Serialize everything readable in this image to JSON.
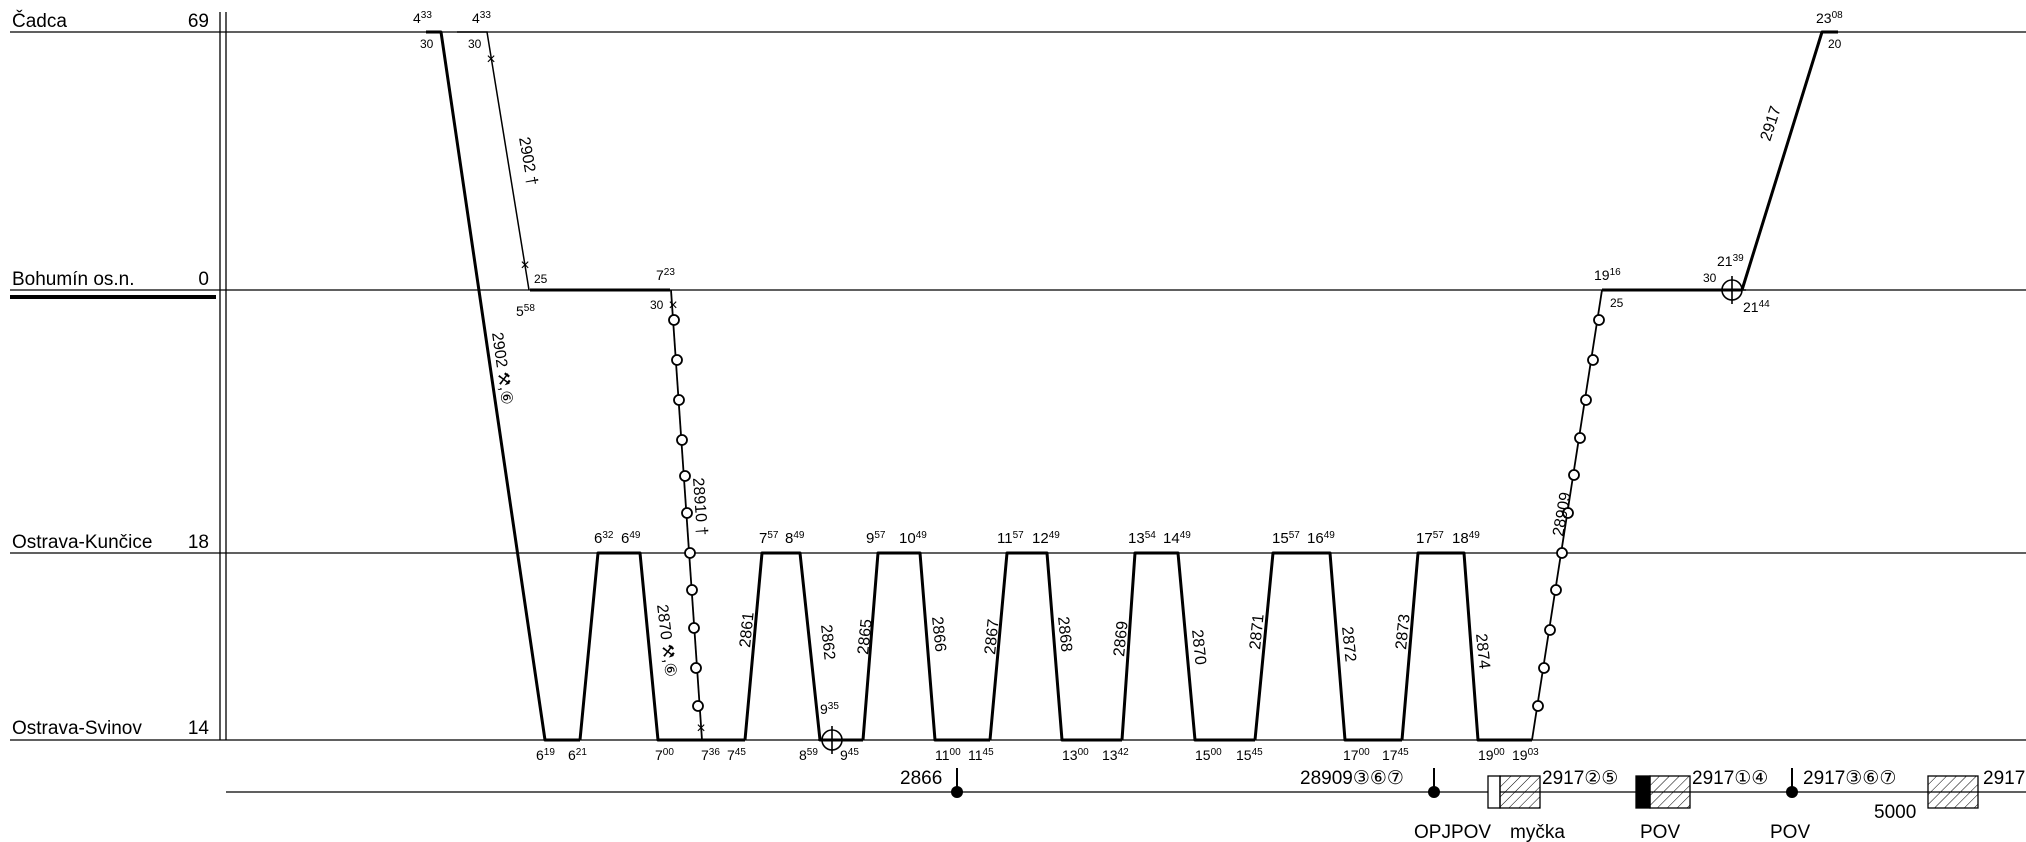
{
  "stations": [
    {
      "id": "cadca",
      "name": "Čadca",
      "km": "69"
    },
    {
      "id": "bohumin",
      "name": "Bohumín os.n.",
      "km": "0"
    },
    {
      "id": "kuncice",
      "name": "Ostrava-Kunčice",
      "km": "18"
    },
    {
      "id": "svinov",
      "name": "Ostrava-Svinov",
      "km": "14"
    }
  ],
  "time_labels": {
    "cadca": [
      {
        "h": "4",
        "m": "33",
        "dwell": "30"
      },
      {
        "h": "4",
        "m": "33",
        "dwell": "30"
      },
      {
        "h": "23",
        "m": "08",
        "dwell": "20"
      }
    ],
    "bohumin": [
      {
        "h": "5",
        "m": "58",
        "dwell": "25"
      },
      {
        "h": "7",
        "m": "23",
        "dwell": "30"
      },
      {
        "h": "19",
        "m": "16",
        "dwell": "25"
      },
      {
        "h": "21",
        "m": "39",
        "dwell": "30"
      },
      {
        "h": "21",
        "m": "44"
      }
    ],
    "kuncice": [
      {
        "h": "6",
        "m": "32"
      },
      {
        "h": "6",
        "m": "49"
      },
      {
        "h": "7",
        "m": "57"
      },
      {
        "h": "8",
        "m": "49"
      },
      {
        "h": "9",
        "m": "57"
      },
      {
        "h": "10",
        "m": "49"
      },
      {
        "h": "11",
        "m": "57"
      },
      {
        "h": "12",
        "m": "49"
      },
      {
        "h": "13",
        "m": "54"
      },
      {
        "h": "14",
        "m": "49"
      },
      {
        "h": "15",
        "m": "57"
      },
      {
        "h": "16",
        "m": "49"
      },
      {
        "h": "17",
        "m": "57"
      },
      {
        "h": "18",
        "m": "49"
      }
    ],
    "svinov": [
      {
        "h": "6",
        "m": "19"
      },
      {
        "h": "6",
        "m": "21"
      },
      {
        "h": "7",
        "m": "00"
      },
      {
        "h": "7",
        "m": "36"
      },
      {
        "h": "7",
        "m": "45"
      },
      {
        "h": "8",
        "m": "59"
      },
      {
        "h": "9",
        "m": "35"
      },
      {
        "h": "9",
        "m": "45"
      },
      {
        "h": "11",
        "m": "00"
      },
      {
        "h": "11",
        "m": "45"
      },
      {
        "h": "13",
        "m": "00"
      },
      {
        "h": "13",
        "m": "42"
      },
      {
        "h": "15",
        "m": "00"
      },
      {
        "h": "15",
        "m": "45"
      },
      {
        "h": "17",
        "m": "00"
      },
      {
        "h": "17",
        "m": "45"
      },
      {
        "h": "19",
        "m": "00"
      },
      {
        "h": "19",
        "m": "03"
      }
    ]
  },
  "train_labels": [
    "2902 †",
    "2902 ⚒,⑥",
    "28910 †",
    "2870 ⚒,⑥",
    "2861",
    "2862",
    "2865",
    "2866",
    "2867",
    "2868",
    "2869",
    "2870",
    "2871",
    "2872",
    "2873",
    "2874",
    "28909",
    "2917"
  ],
  "bottom_bar": {
    "labels": [
      "2866",
      "28909③⑥⑦",
      "2917②⑤",
      "2917①④",
      "2917③⑥⑦",
      "2917",
      "5000"
    ],
    "captions": [
      "OPJPOV",
      "myčka",
      "POV",
      "POV"
    ]
  }
}
